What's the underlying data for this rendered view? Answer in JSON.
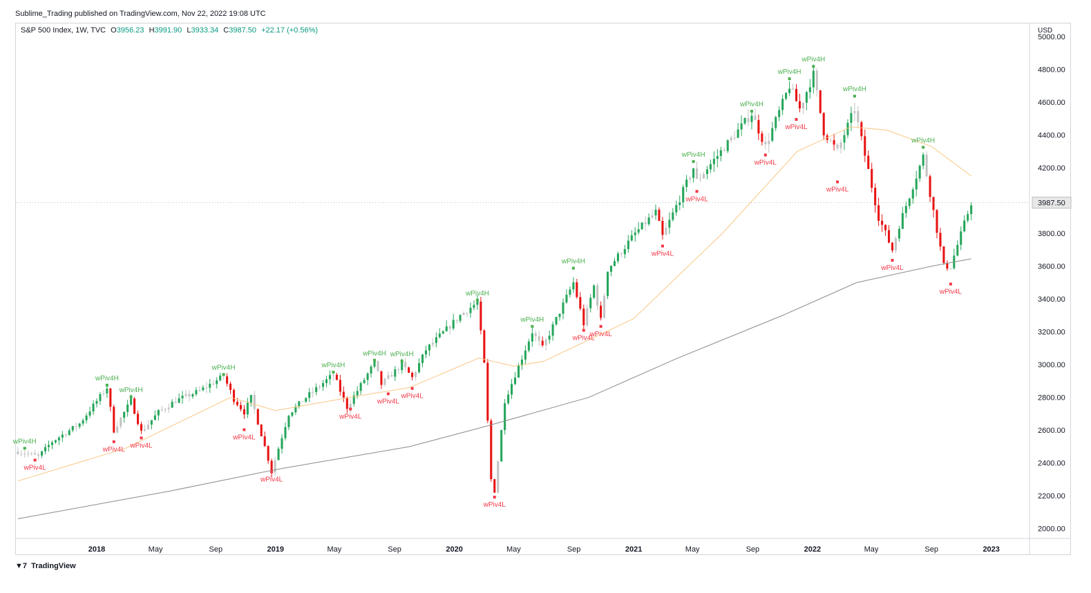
{
  "header": {
    "published": "Sublime_Trading published on TradingView.com, Nov 22, 2022 19:08 UTC"
  },
  "legend": {
    "symbol": "S&P 500 Index, 1W, TVC",
    "o_label": "O",
    "open": "3956.23",
    "h_label": "H",
    "high": "3991.90",
    "l_label": "L",
    "low": "3933.34",
    "c_label": "C",
    "close": "3987.50",
    "change": "+22.17 (+0.56%)"
  },
  "footer": {
    "brand": "TradingView"
  },
  "colors": {
    "bull": "#26a65b",
    "bear": "#e81313",
    "neutral": "#c3c3c3",
    "ma_short": "#f9c784",
    "ma_long": "#8a8a8a",
    "piv_high": "#4caf50",
    "piv_low": "#f23645",
    "text": "#131722"
  },
  "chart_data": {
    "type": "candlestick",
    "currency_label": "USD",
    "y_ticks": [
      2000,
      2200,
      2400,
      2600,
      2800,
      3000,
      3200,
      3400,
      3600,
      3800,
      4000,
      4200,
      4400,
      4600,
      4800,
      5000
    ],
    "y_tick_labels": [
      "2000.00",
      "2200.00",
      "2400.00",
      "2600.00",
      "2800.00",
      "3000.00",
      "3200.00",
      "3400.00",
      "3600.00",
      "3800.00",
      "4000.00",
      "4200.00",
      "4400.00",
      "4600.00",
      "4800.00",
      "5000.00"
    ],
    "x_ticks": [
      {
        "label": "2018",
        "date": "2018-01-01",
        "bold": true
      },
      {
        "label": "May",
        "date": "2018-05-01",
        "bold": false
      },
      {
        "label": "Sep",
        "date": "2018-09-01",
        "bold": false
      },
      {
        "label": "2019",
        "date": "2019-01-01",
        "bold": true
      },
      {
        "label": "May",
        "date": "2019-05-01",
        "bold": false
      },
      {
        "label": "Sep",
        "date": "2019-09-01",
        "bold": false
      },
      {
        "label": "2020",
        "date": "2020-01-01",
        "bold": true
      },
      {
        "label": "May",
        "date": "2020-05-01",
        "bold": false
      },
      {
        "label": "Sep",
        "date": "2020-09-01",
        "bold": false
      },
      {
        "label": "2021",
        "date": "2021-01-01",
        "bold": true
      },
      {
        "label": "May",
        "date": "2021-05-01",
        "bold": false
      },
      {
        "label": "Sep",
        "date": "2021-09-01",
        "bold": false
      },
      {
        "label": "2022",
        "date": "2022-01-01",
        "bold": true
      },
      {
        "label": "May",
        "date": "2022-05-01",
        "bold": false
      },
      {
        "label": "Sep",
        "date": "2022-09-01",
        "bold": false
      },
      {
        "label": "2023",
        "date": "2023-01-01",
        "bold": true
      }
    ],
    "x_range": [
      "2017-07-20",
      "2023-03-20"
    ],
    "y_range": [
      1940,
      5080
    ],
    "last_price_label": "3987.50",
    "price_path": [
      [
        "2017-07-24",
        2470
      ],
      [
        "2017-09-04",
        2440
      ],
      [
        "2017-10-02",
        2530
      ],
      [
        "2017-11-27",
        2640
      ],
      [
        "2018-01-22",
        2860
      ],
      [
        "2018-02-05",
        2600
      ],
      [
        "2018-03-12",
        2780
      ],
      [
        "2018-04-02",
        2590
      ],
      [
        "2018-05-07",
        2710
      ],
      [
        "2018-06-11",
        2780
      ],
      [
        "2018-07-30",
        2840
      ],
      [
        "2018-09-17",
        2930
      ],
      [
        "2018-10-08",
        2790
      ],
      [
        "2018-10-29",
        2710
      ],
      [
        "2018-11-12",
        2800
      ],
      [
        "2018-12-24",
        2350
      ],
      [
        "2019-01-28",
        2700
      ],
      [
        "2019-03-04",
        2800
      ],
      [
        "2019-04-29",
        2940
      ],
      [
        "2019-05-27",
        2740
      ],
      [
        "2019-07-22",
        3010
      ],
      [
        "2019-08-05",
        2880
      ],
      [
        "2019-09-16",
        3000
      ],
      [
        "2019-10-07",
        2920
      ],
      [
        "2019-11-04",
        3090
      ],
      [
        "2020-01-13",
        3300
      ],
      [
        "2020-02-17",
        3380
      ],
      [
        "2020-03-02",
        3000
      ],
      [
        "2020-03-16",
        2300
      ],
      [
        "2020-03-23",
        2230
      ],
      [
        "2020-04-13",
        2780
      ],
      [
        "2020-06-08",
        3200
      ],
      [
        "2020-06-29",
        3100
      ],
      [
        "2020-08-31",
        3500
      ],
      [
        "2020-09-21",
        3250
      ],
      [
        "2020-10-12",
        3480
      ],
      [
        "2020-10-26",
        3270
      ],
      [
        "2020-11-09",
        3580
      ],
      [
        "2021-01-04",
        3800
      ],
      [
        "2021-02-15",
        3930
      ],
      [
        "2021-03-01",
        3780
      ],
      [
        "2021-05-03",
        4200
      ],
      [
        "2021-05-10",
        4120
      ],
      [
        "2021-08-30",
        4530
      ],
      [
        "2021-09-27",
        4330
      ],
      [
        "2021-11-15",
        4700
      ],
      [
        "2021-12-06",
        4560
      ],
      [
        "2022-01-03",
        4770
      ],
      [
        "2022-01-24",
        4420
      ],
      [
        "2022-02-21",
        4300
      ],
      [
        "2022-03-28",
        4560
      ],
      [
        "2022-05-16",
        3900
      ],
      [
        "2022-06-13",
        3700
      ],
      [
        "2022-06-27",
        3850
      ],
      [
        "2022-08-15",
        4270
      ],
      [
        "2022-09-26",
        3600
      ],
      [
        "2022-10-10",
        3600
      ],
      [
        "2022-11-21",
        3987.5
      ]
    ],
    "ma_short": [
      [
        "2017-07-24",
        2290
      ],
      [
        "2018-03-01",
        2490
      ],
      [
        "2018-10-01",
        2800
      ],
      [
        "2019-01-01",
        2720
      ],
      [
        "2019-06-01",
        2800
      ],
      [
        "2019-10-01",
        2860
      ],
      [
        "2020-02-20",
        3040
      ],
      [
        "2020-05-01",
        2990
      ],
      [
        "2020-07-01",
        3020
      ],
      [
        "2020-10-01",
        3150
      ],
      [
        "2021-01-01",
        3280
      ],
      [
        "2021-07-01",
        3800
      ],
      [
        "2021-12-01",
        4300
      ],
      [
        "2022-03-20",
        4450
      ],
      [
        "2022-06-01",
        4430
      ],
      [
        "2022-09-01",
        4330
      ],
      [
        "2022-11-21",
        4150
      ]
    ],
    "ma_long": [
      [
        "2017-07-24",
        2060
      ],
      [
        "2018-06-01",
        2230
      ],
      [
        "2019-01-01",
        2360
      ],
      [
        "2019-10-01",
        2500
      ],
      [
        "2020-03-01",
        2620
      ],
      [
        "2020-10-01",
        2800
      ],
      [
        "2021-04-01",
        3040
      ],
      [
        "2021-11-01",
        3300
      ],
      [
        "2022-04-01",
        3500
      ],
      [
        "2022-09-01",
        3600
      ],
      [
        "2022-11-21",
        3645
      ]
    ],
    "pivots": [
      {
        "label": "wPiv4H",
        "type": "high",
        "date": "2017-08-07",
        "price": 2490
      },
      {
        "label": "wPiv4L",
        "type": "low",
        "date": "2017-08-28",
        "price": 2418
      },
      {
        "label": "wPiv4H",
        "type": "high",
        "date": "2018-01-22",
        "price": 2875
      },
      {
        "label": "wPiv4L",
        "type": "low",
        "date": "2018-02-05",
        "price": 2530
      },
      {
        "label": "wPiv4H",
        "type": "high",
        "date": "2018-03-12",
        "price": 2803
      },
      {
        "label": "wPiv4L",
        "type": "low",
        "date": "2018-04-02",
        "price": 2553
      },
      {
        "label": "wPiv4H",
        "type": "high",
        "date": "2018-09-17",
        "price": 2940
      },
      {
        "label": "wPiv4L",
        "type": "low",
        "date": "2018-10-29",
        "price": 2603
      },
      {
        "label": "wPiv4L",
        "type": "low",
        "date": "2018-12-24",
        "price": 2346
      },
      {
        "label": "wPiv4H",
        "type": "high",
        "date": "2019-04-29",
        "price": 2954
      },
      {
        "label": "wPiv4L",
        "type": "low",
        "date": "2019-06-03",
        "price": 2729
      },
      {
        "label": "wPiv4H",
        "type": "high",
        "date": "2019-07-22",
        "price": 3027
      },
      {
        "label": "wPiv4L",
        "type": "low",
        "date": "2019-08-19",
        "price": 2822
      },
      {
        "label": "wPiv4H",
        "type": "high",
        "date": "2019-09-16",
        "price": 3022
      },
      {
        "label": "wPiv4L",
        "type": "low",
        "date": "2019-10-07",
        "price": 2855
      },
      {
        "label": "wPiv4H",
        "type": "high",
        "date": "2020-02-17",
        "price": 3393
      },
      {
        "label": "wPiv4L",
        "type": "low",
        "date": "2020-03-23",
        "price": 2192
      },
      {
        "label": "wPiv4H",
        "type": "high",
        "date": "2020-06-08",
        "price": 3233
      },
      {
        "label": "wPiv4H",
        "type": "high",
        "date": "2020-08-31",
        "price": 3588
      },
      {
        "label": "wPiv4L",
        "type": "low",
        "date": "2020-09-21",
        "price": 3209
      },
      {
        "label": "wPiv4L",
        "type": "low",
        "date": "2020-10-26",
        "price": 3233
      },
      {
        "label": "wPiv4H",
        "type": "high",
        "date": "2021-05-03",
        "price": 4238
      },
      {
        "label": "wPiv4L",
        "type": "low",
        "date": "2021-05-10",
        "price": 4056
      },
      {
        "label": "wPiv4L",
        "type": "low",
        "date": "2021-03-01",
        "price": 3723
      },
      {
        "label": "wPiv4H",
        "type": "high",
        "date": "2021-08-30",
        "price": 4545
      },
      {
        "label": "wPiv4L",
        "type": "low",
        "date": "2021-09-27",
        "price": 4278
      },
      {
        "label": "wPiv4H",
        "type": "high",
        "date": "2021-11-15",
        "price": 4743
      },
      {
        "label": "wPiv4L",
        "type": "low",
        "date": "2021-11-29",
        "price": 4495
      },
      {
        "label": "wPiv4H",
        "type": "high",
        "date": "2022-01-03",
        "price": 4818
      },
      {
        "label": "wPiv4L",
        "type": "low",
        "date": "2022-02-21",
        "price": 4114
      },
      {
        "label": "wPiv4H",
        "type": "high",
        "date": "2022-03-28",
        "price": 4637
      },
      {
        "label": "wPiv4L",
        "type": "low",
        "date": "2022-06-13",
        "price": 3636
      },
      {
        "label": "wPiv4H",
        "type": "high",
        "date": "2022-08-15",
        "price": 4325
      },
      {
        "label": "wPiv4L",
        "type": "low",
        "date": "2022-10-10",
        "price": 3491
      }
    ]
  }
}
